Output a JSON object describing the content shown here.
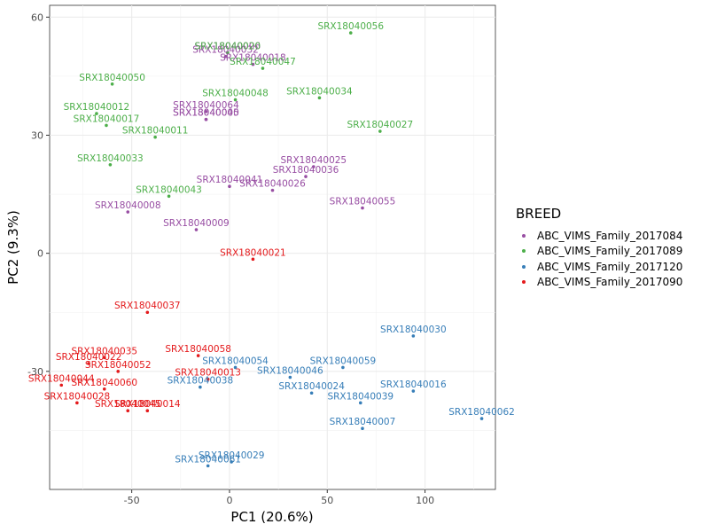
{
  "chart_data": {
    "type": "scatter",
    "xlabel": "PC1 (20.6%)",
    "ylabel": "PC2 (9.3%)",
    "xlim": [
      -92,
      136
    ],
    "ylim": [
      -60,
      63
    ],
    "xticks": [
      -50,
      0,
      50,
      100
    ],
    "yticks": [
      -30,
      0,
      30,
      60
    ],
    "grid": true,
    "legend_position": "right",
    "legend_title": "BREED",
    "series": [
      {
        "name": "ABC_VIMS_Family_2017084",
        "color": "#984EA3",
        "points": [
          {
            "label": "SRX18040006",
            "x": -1,
            "y": 51
          },
          {
            "label": "SRX18040032",
            "x": -2,
            "y": 50
          },
          {
            "label": "SRX18040018",
            "x": 12,
            "y": 48
          },
          {
            "label": "SRX18040064",
            "x": -12,
            "y": 36
          },
          {
            "label": "SRX18040040",
            "x": -12,
            "y": 34
          },
          {
            "label": "SRX18040005",
            "x": -12,
            "y": 34
          },
          {
            "label": "SRX18040025",
            "x": 43,
            "y": 22
          },
          {
            "label": "SRX18040036",
            "x": 39,
            "y": 19.5
          },
          {
            "label": "SRX18040026",
            "x": 22,
            "y": 16
          },
          {
            "label": "SRX18040041",
            "x": 0,
            "y": 17
          },
          {
            "label": "SRX18040055",
            "x": 68,
            "y": 11.5
          },
          {
            "label": "SRX18040008",
            "x": -52,
            "y": 10.5
          },
          {
            "label": "SRX18040009",
            "x": -17,
            "y": 6
          }
        ]
      },
      {
        "name": "ABC_VIMS_Family_2017089",
        "color": "#4DAF4A",
        "points": [
          {
            "label": "SRX18040056",
            "x": 62,
            "y": 56
          },
          {
            "label": "SRX18040020",
            "x": -1,
            "y": 51
          },
          {
            "label": "SRX18040047",
            "x": 17,
            "y": 47
          },
          {
            "label": "SRX18040050",
            "x": -60,
            "y": 43
          },
          {
            "label": "SRX18040048",
            "x": 3,
            "y": 39
          },
          {
            "label": "SRX18040034",
            "x": 46,
            "y": 39.5
          },
          {
            "label": "SRX18040012",
            "x": -68,
            "y": 35.5
          },
          {
            "label": "SRX18040017",
            "x": -63,
            "y": 32.5
          },
          {
            "label": "SRX18040011",
            "x": -38,
            "y": 29.5
          },
          {
            "label": "SRX18040027",
            "x": 77,
            "y": 31
          },
          {
            "label": "SRX18040033",
            "x": -61,
            "y": 22.5
          },
          {
            "label": "SRX18040043",
            "x": -31,
            "y": 14.5
          }
        ]
      },
      {
        "name": "ABC_VIMS_Family_2017120",
        "color": "#377EB8",
        "points": [
          {
            "label": "SRX18040030",
            "x": 94,
            "y": -21
          },
          {
            "label": "SRX18040054",
            "x": 3,
            "y": -29
          },
          {
            "label": "SRX18040059",
            "x": 58,
            "y": -29
          },
          {
            "label": "SRX18040046",
            "x": 31,
            "y": -31.5
          },
          {
            "label": "SRX18040038",
            "x": -15,
            "y": -34
          },
          {
            "label": "SRX18040016",
            "x": 94,
            "y": -35
          },
          {
            "label": "SRX18040024",
            "x": 42,
            "y": -35.5
          },
          {
            "label": "SRX18040039",
            "x": 67,
            "y": -38
          },
          {
            "label": "SRX18040007",
            "x": 68,
            "y": -44.5
          },
          {
            "label": "SRX18040062",
            "x": 129,
            "y": -42
          },
          {
            "label": "SRX18040029",
            "x": 1,
            "y": -53
          },
          {
            "label": "SRX18040061",
            "x": -11,
            "y": -54
          }
        ]
      },
      {
        "name": "ABC_VIMS_Family_2017090",
        "color": "#E41A1C",
        "points": [
          {
            "label": "SRX18040021",
            "x": 12,
            "y": -1.5
          },
          {
            "label": "SRX18040037",
            "x": -42,
            "y": -15
          },
          {
            "label": "SRX18040058",
            "x": -16,
            "y": -26
          },
          {
            "label": "SRX18040035",
            "x": -64,
            "y": -26.5
          },
          {
            "label": "SRX18040022",
            "x": -72,
            "y": -28
          },
          {
            "label": "SRX18040052",
            "x": -57,
            "y": -30
          },
          {
            "label": "SRX18040013",
            "x": -11,
            "y": -32
          },
          {
            "label": "SRX18040060",
            "x": -64,
            "y": -34.5
          },
          {
            "label": "SRX18040044",
            "x": -86,
            "y": -33.5
          },
          {
            "label": "SRX18040028",
            "x": -78,
            "y": -38
          },
          {
            "label": "SRX18040045",
            "x": -52,
            "y": -40
          },
          {
            "label": "SRX18040014",
            "x": -42,
            "y": -40
          }
        ]
      }
    ]
  }
}
